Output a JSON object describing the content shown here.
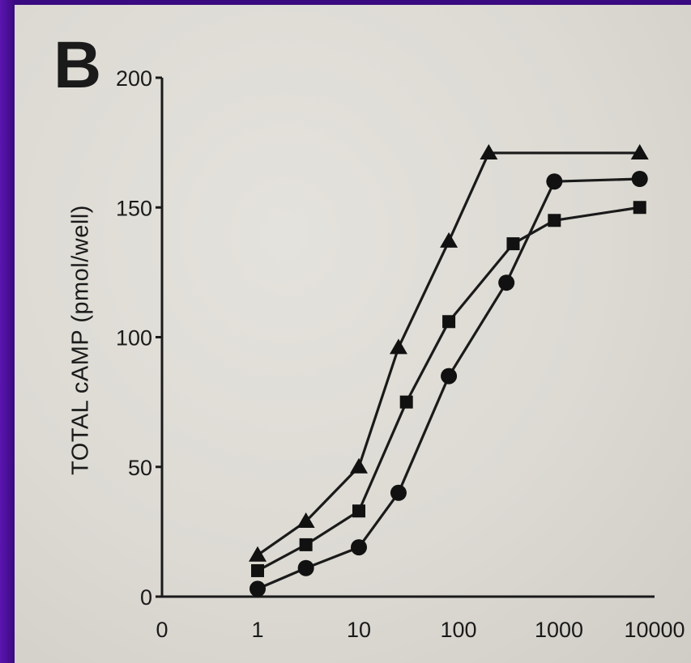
{
  "panel_label": "B",
  "chart_data": {
    "type": "line",
    "title": "",
    "xlabel": "",
    "ylabel": "TOTAL cAMP (pmol/well)",
    "x_scale": "log",
    "xlim": [
      0,
      10000
    ],
    "ylim": [
      0,
      200
    ],
    "x_tick_labels": [
      "0",
      "1",
      "10",
      "100",
      "1000",
      "10000"
    ],
    "y_tick_labels": [
      "0",
      "50",
      "100",
      "150",
      "200"
    ],
    "y_ticks": [
      0,
      50,
      100,
      150,
      200
    ],
    "grid": false,
    "series": [
      {
        "marker": "triangle",
        "x": [
          1,
          3,
          10,
          25,
          80,
          200,
          7000
        ],
        "y": [
          16,
          29,
          50,
          96,
          137,
          171,
          171
        ]
      },
      {
        "marker": "square",
        "x": [
          1,
          3,
          10,
          30,
          80,
          350,
          900,
          7000
        ],
        "y": [
          10,
          20,
          33,
          75,
          106,
          136,
          145,
          150
        ]
      },
      {
        "marker": "circle",
        "x": [
          1,
          3,
          10,
          25,
          80,
          300,
          900,
          7000
        ],
        "y": [
          3,
          11,
          19,
          40,
          85,
          121,
          160,
          161
        ]
      }
    ]
  }
}
